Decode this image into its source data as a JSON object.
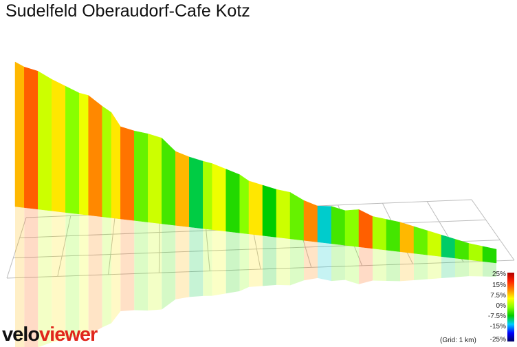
{
  "title": "Sudelfeld Oberaudorf-Cafe Kotz",
  "brand": {
    "part1": "velo",
    "part2": "viewer"
  },
  "legend": {
    "labels": [
      "25%",
      "15%",
      "7.5%",
      "0%",
      "-7.5%",
      "-15%",
      "-25%"
    ],
    "colors": [
      "#b00000",
      "#ff2200",
      "#ff8800",
      "#ffff00",
      "#88ff00",
      "#00cc00",
      "#00ccff",
      "#0000ff",
      "#000066"
    ]
  },
  "grid_note": "(Grid: 1 km)",
  "chart_data": {
    "type": "area",
    "title": "Sudelfeld Oberaudorf-Cafe Kotz",
    "xlabel": "",
    "ylabel": "",
    "x_units": "km",
    "grid": true,
    "grid_step_km": 1,
    "distance_km": [
      0.0,
      0.2,
      0.5,
      0.8,
      1.1,
      1.4,
      1.6,
      1.9,
      2.1,
      2.3,
      2.6,
      2.9,
      3.2,
      3.5,
      3.8,
      4.1,
      4.3,
      4.6,
      4.9,
      5.1,
      5.4,
      5.7,
      6.0,
      6.3,
      6.6,
      6.9,
      7.2,
      7.5,
      7.8,
      8.1,
      8.4,
      8.7,
      9.0,
      9.3,
      9.6,
      9.9,
      10.2,
      10.5
    ],
    "elevation_rel": [
      100,
      97,
      95,
      90,
      86,
      82,
      81,
      74,
      70,
      60,
      58,
      57,
      55,
      46,
      43,
      41,
      40,
      37,
      34,
      30,
      28,
      26,
      25,
      20,
      17,
      18,
      16,
      18,
      14,
      13,
      12,
      10,
      8,
      6,
      4,
      2,
      1,
      0
    ],
    "gradient_pct": [
      9,
      12,
      6,
      8,
      4,
      7,
      10,
      5,
      8,
      11,
      3,
      6,
      2,
      9,
      -2,
      5,
      7,
      1,
      4,
      8,
      0,
      6,
      3,
      10,
      -6,
      2,
      4,
      12,
      5,
      2,
      9,
      3,
      6,
      -3,
      2,
      5,
      1
    ]
  }
}
